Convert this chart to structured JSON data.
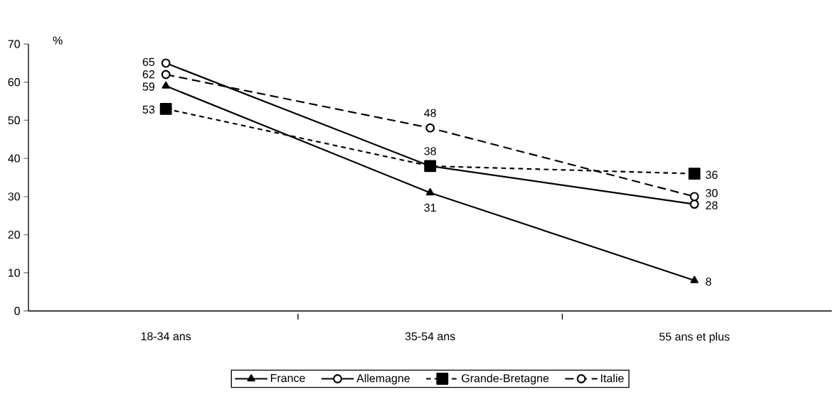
{
  "chart_data": {
    "type": "line",
    "ylabel": "%",
    "categories": [
      "18-34 ans",
      "35-54 ans",
      "55 ans et plus"
    ],
    "series": [
      {
        "name": "France",
        "color": "#000000",
        "values": [
          59,
          31,
          8
        ],
        "value_labels": [
          "59",
          "31",
          "8"
        ],
        "marker": "triangle",
        "line_style": "solid"
      },
      {
        "name": "Allemagne",
        "color": "#000000",
        "values": [
          65,
          38,
          28
        ],
        "value_labels": [
          "65",
          "38",
          "28"
        ],
        "marker": "circle",
        "line_style": "solid"
      },
      {
        "name": "Grande-Bretagne",
        "color": "#000000",
        "values": [
          53,
          38,
          36
        ],
        "value_labels": [
          "53",
          null,
          "36"
        ],
        "marker": "square",
        "line_style": "dotted"
      },
      {
        "name": "Italie",
        "color": "#000000",
        "values": [
          62,
          48,
          30
        ],
        "value_labels": [
          "62",
          "48",
          "30"
        ],
        "marker": "circle",
        "line_style": "dashed"
      }
    ],
    "ylim": [
      0,
      70
    ],
    "yticks": [
      0,
      10,
      20,
      30,
      40,
      50,
      60,
      70
    ],
    "grid": false,
    "legend": "bottom"
  }
}
